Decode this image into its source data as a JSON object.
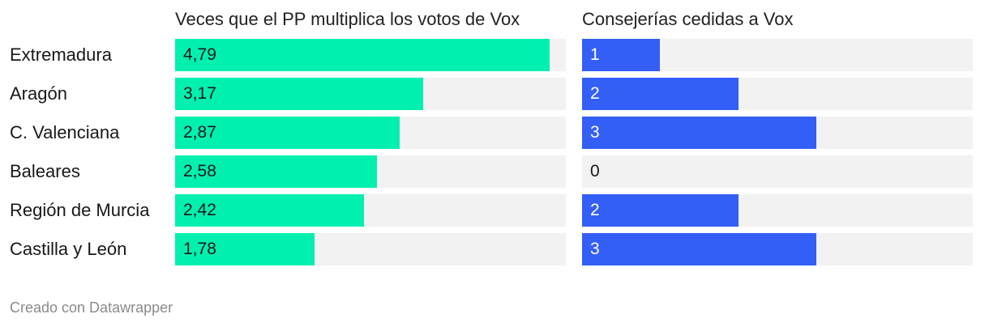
{
  "chart_data": [
    {
      "type": "bar",
      "orientation": "horizontal",
      "title": "Veces que el PP multiplica los votos de Vox",
      "categories": [
        "Extremadura",
        "Aragón",
        "C. Valenciana",
        "Baleares",
        "Región de Murcia",
        "Castilla y León"
      ],
      "values": [
        4.79,
        3.17,
        2.87,
        2.58,
        2.42,
        1.78
      ],
      "labels": [
        "4,79",
        "3,17",
        "2,87",
        "2,58",
        "2,42",
        "1,78"
      ],
      "xlim": [
        0,
        5
      ],
      "color": "#00f0b0",
      "label_color": "#181818"
    },
    {
      "type": "bar",
      "orientation": "horizontal",
      "title": "Consejerías cedidas a Vox",
      "categories": [
        "Extremadura",
        "Aragón",
        "C. Valenciana",
        "Baleares",
        "Región de Murcia",
        "Castilla y León"
      ],
      "values": [
        1,
        2,
        3,
        0,
        2,
        3
      ],
      "labels": [
        "1",
        "2",
        "3",
        "0",
        "2",
        "3"
      ],
      "xlim": [
        0,
        5
      ],
      "color": "#335ff6",
      "label_color": "#ffffff",
      "label_color_zero": "#181818"
    }
  ],
  "credit": "Creado con Datawrapper",
  "colors": {
    "track": "#f2f2f2",
    "text": "#181818",
    "credit": "#8a8a8a"
  }
}
